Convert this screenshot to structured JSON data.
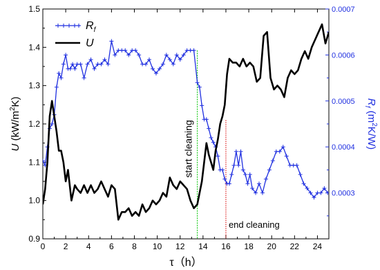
{
  "chart_data": {
    "type": "line",
    "xlabel": "τ（h）",
    "ylabel_left": "U (kW/m²K)",
    "ylabel_right": "Rf (m²K/W)",
    "xlim": [
      0,
      25
    ],
    "ylim_left": [
      0.9,
      1.5
    ],
    "ylim_right": [
      0.0002,
      0.0007
    ],
    "xticks": [
      0,
      2,
      4,
      6,
      8,
      10,
      12,
      14,
      16,
      18,
      20,
      22,
      24
    ],
    "xtick_labels": [
      "0",
      "2",
      "4",
      "6",
      "8",
      "10",
      "12",
      "14",
      "16",
      "18",
      "20",
      "22",
      "24"
    ],
    "yticks_left": [
      0.9,
      1.0,
      1.1,
      1.2,
      1.3,
      1.4,
      1.5
    ],
    "ytick_labels_left": [
      "0.9",
      "1.0",
      "1.1",
      "1.2",
      "1.3",
      "1.4",
      "1.5"
    ],
    "yticks_right": [
      0.0003,
      0.0004,
      0.0005,
      0.0006,
      0.0007
    ],
    "ytick_labels_right": [
      "0.0003",
      "0.0004",
      "0.0005",
      "0.0006",
      "0.0007"
    ],
    "grid": false,
    "legend_position": "top-left",
    "colors": {
      "U": "#000000",
      "Rf": "#1f2fe0",
      "start": "#22cc22",
      "end": "#dd2222",
      "right_axis": "#1f2fe0"
    },
    "series": [
      {
        "name": "Rf",
        "axis": "right",
        "marker": "plus",
        "x": [
          0.0,
          0.2,
          0.4,
          0.6,
          0.8,
          1.0,
          1.2,
          1.4,
          1.6,
          1.8,
          2.0,
          2.2,
          2.4,
          2.6,
          2.8,
          3.0,
          3.3,
          3.6,
          3.9,
          4.2,
          4.5,
          4.8,
          5.1,
          5.4,
          5.7,
          6.0,
          6.3,
          6.6,
          6.9,
          7.2,
          7.5,
          7.8,
          8.1,
          8.4,
          8.7,
          9.0,
          9.3,
          9.6,
          9.9,
          10.2,
          10.5,
          10.8,
          11.1,
          11.4,
          11.7,
          12.0,
          12.3,
          12.6,
          12.9,
          13.2,
          13.5,
          13.7,
          13.9,
          14.1,
          14.3,
          14.5,
          14.7,
          14.9,
          15.1,
          15.3,
          15.5,
          15.7,
          15.9,
          16.1,
          16.3,
          16.5,
          16.7,
          16.9,
          17.1,
          17.3,
          17.5,
          17.7,
          17.9,
          18.1,
          18.3,
          18.6,
          18.9,
          19.2,
          19.5,
          19.8,
          20.1,
          20.4,
          20.7,
          21.0,
          21.3,
          21.6,
          21.9,
          22.2,
          22.5,
          22.8,
          23.1,
          23.4,
          23.7,
          24.0,
          24.3,
          24.6,
          24.9
        ],
        "values": [
          0.00037,
          0.00036,
          0.0004,
          0.00044,
          0.00045,
          0.00047,
          0.00053,
          0.00056,
          0.00055,
          0.00058,
          0.0006,
          0.00057,
          0.00057,
          0.00058,
          0.00057,
          0.00058,
          0.00058,
          0.00055,
          0.00058,
          0.00059,
          0.00057,
          0.00058,
          0.00058,
          0.00059,
          0.00058,
          0.00063,
          0.0006,
          0.00061,
          0.00061,
          0.00061,
          0.0006,
          0.00061,
          0.00061,
          0.0006,
          0.00058,
          0.00058,
          0.00059,
          0.00057,
          0.00056,
          0.00057,
          0.00058,
          0.0006,
          0.00059,
          0.00058,
          0.0006,
          0.00059,
          0.0006,
          0.00061,
          0.00061,
          0.00061,
          0.00054,
          0.00053,
          0.00049,
          0.00046,
          0.00046,
          0.00044,
          0.00042,
          0.00041,
          0.0004,
          0.00038,
          0.00035,
          0.00035,
          0.00033,
          0.00032,
          0.00032,
          0.00034,
          0.00036,
          0.00039,
          0.00036,
          0.00039,
          0.00035,
          0.00034,
          0.00032,
          0.00034,
          0.00031,
          0.0003,
          0.00032,
          0.0003,
          0.00033,
          0.00035,
          0.00037,
          0.00039,
          0.00039,
          0.0004,
          0.00038,
          0.00036,
          0.00036,
          0.00036,
          0.00034,
          0.00032,
          0.00031,
          0.0003,
          0.00029,
          0.0003,
          0.0003,
          0.00031,
          0.0003
        ]
      },
      {
        "name": "U",
        "axis": "left",
        "marker": "none",
        "x": [
          0.0,
          0.2,
          0.4,
          0.6,
          0.8,
          1.0,
          1.2,
          1.4,
          1.6,
          1.8,
          2.0,
          2.2,
          2.5,
          2.8,
          3.0,
          3.3,
          3.6,
          3.9,
          4.2,
          4.5,
          4.8,
          5.1,
          5.4,
          5.7,
          6.0,
          6.3,
          6.6,
          6.9,
          7.2,
          7.5,
          7.8,
          8.1,
          8.4,
          8.7,
          9.0,
          9.3,
          9.6,
          9.9,
          10.2,
          10.5,
          10.8,
          11.1,
          11.4,
          11.7,
          12.0,
          12.3,
          12.6,
          12.9,
          13.2,
          13.5,
          13.7,
          13.9,
          14.1,
          14.3,
          14.5,
          14.7,
          14.9,
          15.1,
          15.3,
          15.5,
          15.7,
          15.9,
          16.1,
          16.3,
          16.6,
          16.9,
          17.2,
          17.5,
          17.8,
          18.1,
          18.4,
          18.7,
          19.0,
          19.3,
          19.6,
          19.9,
          20.2,
          20.5,
          20.8,
          21.1,
          21.4,
          21.7,
          22.0,
          22.3,
          22.6,
          22.9,
          23.2,
          23.5,
          23.8,
          24.1,
          24.4,
          24.7,
          25.0
        ],
        "values": [
          0.99,
          1.03,
          1.1,
          1.22,
          1.26,
          1.22,
          1.18,
          1.13,
          1.13,
          1.1,
          1.05,
          1.08,
          1.0,
          1.04,
          1.03,
          1.02,
          1.04,
          1.02,
          1.04,
          1.02,
          1.03,
          1.05,
          1.03,
          1.01,
          1.04,
          1.03,
          0.95,
          0.97,
          0.97,
          0.98,
          0.96,
          0.97,
          0.96,
          0.99,
          0.97,
          0.98,
          1.0,
          0.99,
          1.0,
          1.02,
          1.01,
          1.06,
          1.04,
          1.03,
          1.05,
          1.04,
          1.03,
          1.0,
          0.98,
          0.99,
          1.02,
          1.05,
          1.1,
          1.15,
          1.12,
          1.1,
          1.08,
          1.13,
          1.16,
          1.2,
          1.22,
          1.25,
          1.33,
          1.37,
          1.36,
          1.36,
          1.35,
          1.37,
          1.35,
          1.36,
          1.35,
          1.31,
          1.32,
          1.43,
          1.44,
          1.32,
          1.29,
          1.3,
          1.29,
          1.27,
          1.32,
          1.34,
          1.33,
          1.34,
          1.37,
          1.39,
          1.37,
          1.4,
          1.42,
          1.44,
          1.46,
          1.41,
          1.44
        ]
      }
    ],
    "annotations": [
      {
        "name": "start cleaning",
        "text": "start cleaning",
        "x": 13.5
      },
      {
        "name": "end cleaning",
        "text": "end cleaning",
        "x": 16.0
      }
    ]
  }
}
